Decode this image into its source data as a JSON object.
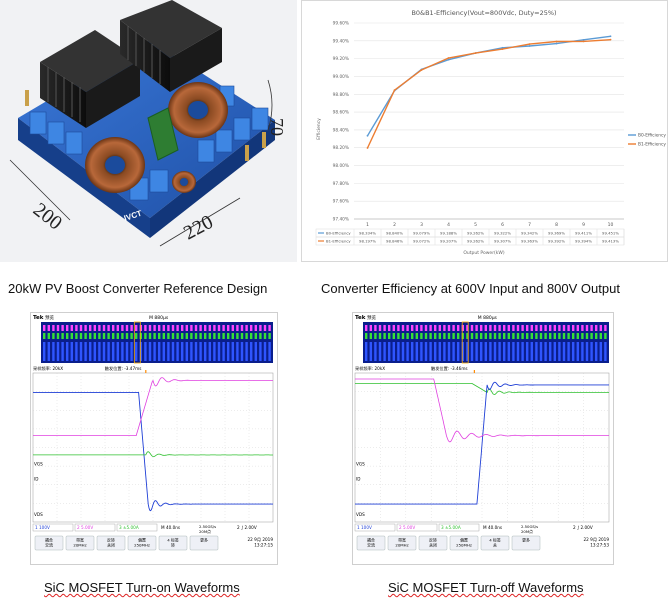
{
  "captions": {
    "photo": "20kW PV Boost Converter Reference Design",
    "efficiency": "Converter Efficiency at 600V Input and 800V Output",
    "turn_on": "SiC MOSFET Turn-on Waveforms",
    "turn_off": "SiC MOSFET Turn-off Waveforms"
  },
  "photo": {
    "dim_width": "200",
    "dim_length": "220",
    "dim_height": "70",
    "brand": "IVCT"
  },
  "chart_data": {
    "type": "line",
    "title": "B0&B1-Efficiency(Vout=800Vdc, Duty=25%)",
    "xlabel": "Output Power(kW)",
    "ylabel": "Efficiency",
    "categories": [
      "1",
      "2",
      "3",
      "4",
      "5",
      "6",
      "7",
      "8",
      "9",
      "10"
    ],
    "ylim": [
      97.4,
      99.6
    ],
    "yticks": [
      "99.60%",
      "99.40%",
      "99.20%",
      "99.00%",
      "98.80%",
      "98.60%",
      "98.40%",
      "98.20%",
      "98.00%",
      "97.80%",
      "97.60%",
      "97.40%"
    ],
    "series": [
      {
        "name": "B0-Efficiency",
        "color": "#5b9bd5",
        "values": [
          98.334,
          98.84,
          99.079,
          99.188,
          99.262,
          99.322,
          99.342,
          99.369,
          99.411,
          99.451
        ],
        "labels": [
          "98.334%",
          "98.840%",
          "99.079%",
          "99.188%",
          "99.262%",
          "99.322%",
          "99.342%",
          "99.369%",
          "99.411%",
          "99.451%"
        ]
      },
      {
        "name": "B1-Efficiency",
        "color": "#ed7d31",
        "values": [
          98.197,
          98.846,
          99.072,
          99.207,
          99.262,
          99.307,
          99.363,
          99.392,
          99.394,
          99.413
        ],
        "labels": [
          "98.197%",
          "98.846%",
          "99.072%",
          "99.207%",
          "99.262%",
          "99.307%",
          "99.363%",
          "99.392%",
          "99.394%",
          "99.413%"
        ]
      }
    ]
  },
  "scopes": [
    {
      "brand": "Tek",
      "state": "预览",
      "timebase_top": "M 880μs",
      "sample_info": "采样频率: 20kX",
      "record_info": "触发位置: -3.47ms",
      "labels": [
        "VGS",
        "ID",
        "VDS"
      ],
      "ch1": "1 100V",
      "ch2": "2 5.00V",
      "ch3": "3 ±5.00A",
      "timebase": "M 40.0ns",
      "rate": "2.50GS/s",
      "points": "20M点",
      "trigger": "2 ∫ 2.00V",
      "menu": [
        "耦合\n交流",
        "带宽\n20MHz",
        "反转\n关闭",
        "偏置\n250MHz",
        "4 标签\n转",
        "更多"
      ],
      "date": "22 9月 2019",
      "time": "13:27:15"
    },
    {
      "brand": "Tek",
      "state": "预览",
      "timebase_top": "M 880μs",
      "sample_info": "采样频率: 20kX",
      "record_info": "触发位置: -3.46ms",
      "labels": [
        "VGS",
        "ID",
        "VDS"
      ],
      "ch1": "1 100V",
      "ch2": "2 5.00V",
      "ch3": "3 ±5.00A",
      "timebase": "M 40.0ns",
      "rate": "2.50GS/s",
      "points": "20M点",
      "trigger": "2 ∫ 2.00V",
      "menu": [
        "耦合\n交流",
        "带宽\n20MHz",
        "反转\n关闭",
        "偏置\n250MHz",
        "4 标签\n关",
        "更多"
      ],
      "date": "22 9月 2019",
      "time": "13:27:53"
    }
  ]
}
